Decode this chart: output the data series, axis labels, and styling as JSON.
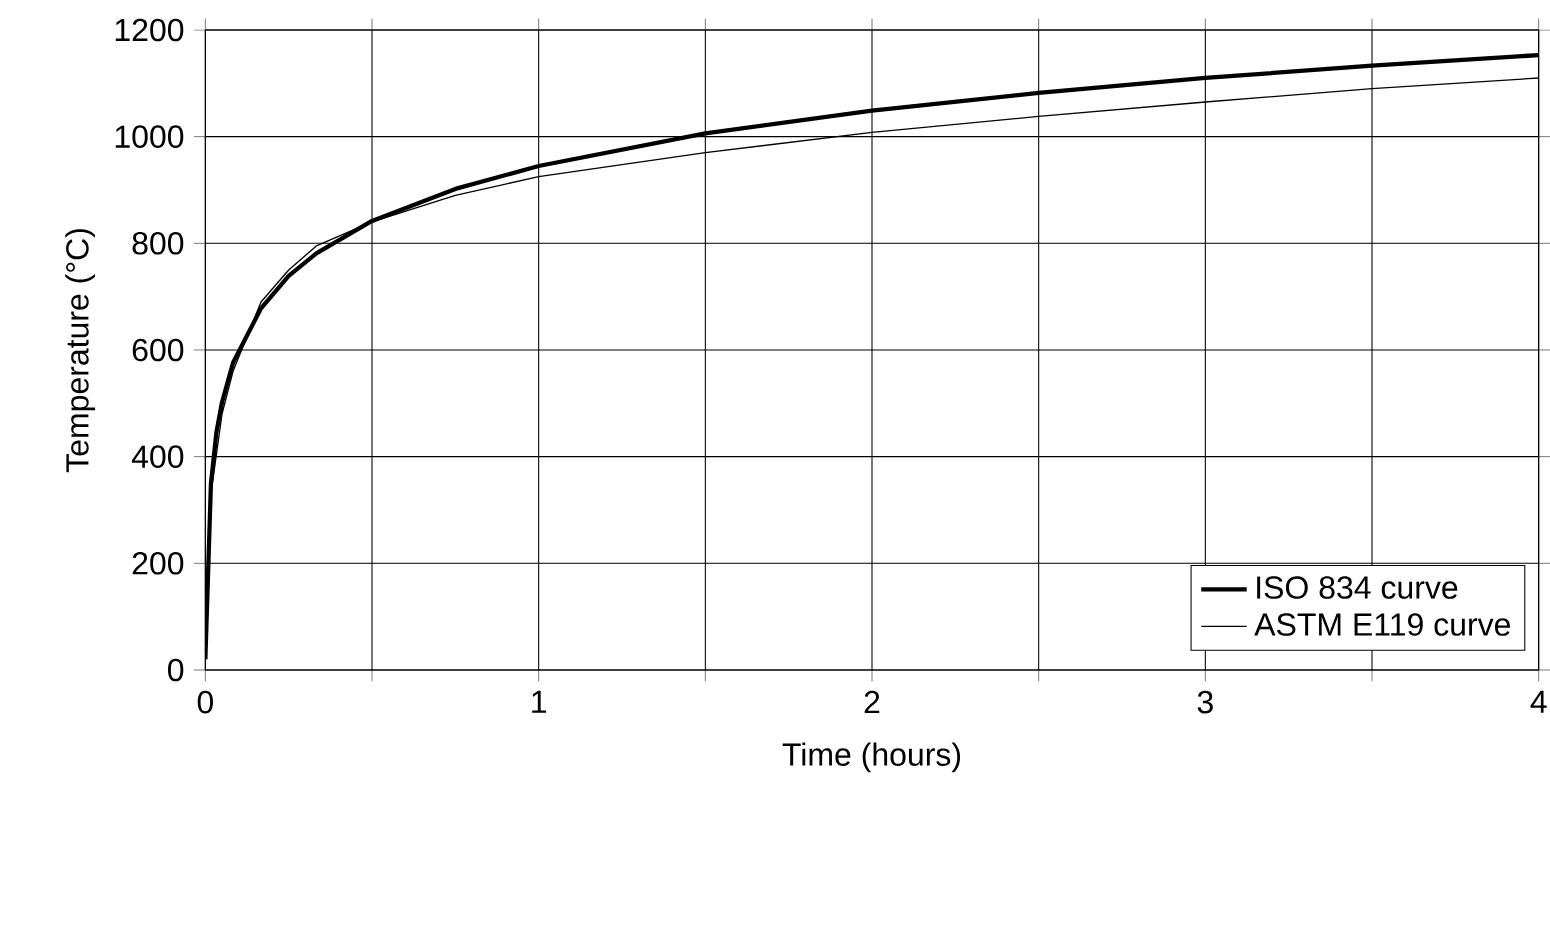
{
  "chart_data": {
    "type": "line",
    "xlabel": "Time (hours)",
    "ylabel": "Temperature (°C)",
    "xlim": [
      0,
      4
    ],
    "ylim": [
      0,
      1200
    ],
    "xticks": [
      0,
      {
        "value": 0.5,
        "label": null
      },
      1,
      {
        "value": 1.5,
        "label": null
      },
      2,
      {
        "value": 2.5,
        "label": null
      },
      3,
      {
        "value": 3.5,
        "label": null
      },
      4
    ],
    "yticks": [
      0,
      200,
      400,
      600,
      800,
      1000,
      1200
    ],
    "grid": true,
    "legend": "bottom right",
    "marker": "none",
    "line_style": "solid",
    "series": [
      {
        "name": "ISO 834 curve",
        "color": "#000000",
        "x": [
          0,
          0.0167,
          0.033,
          0.05,
          0.083,
          0.167,
          0.25,
          0.333,
          0.5,
          0.75,
          1,
          1.5,
          2,
          2.5,
          3,
          3.5,
          4
        ],
        "values": [
          20,
          349,
          445,
          502,
          576,
          678,
          739,
          781,
          842,
          902,
          945,
          1006,
          1049,
          1082,
          1110,
          1133,
          1153
        ]
      },
      {
        "name": "ASTM E119 curve",
        "color": "#000000",
        "x": [
          0,
          0.0167,
          0.05,
          0.083,
          0.167,
          0.25,
          0.333,
          0.5,
          0.75,
          1,
          1.5,
          2,
          2.5,
          3,
          3.5,
          4
        ],
        "values": [
          20,
          330,
          480,
          560,
          690,
          750,
          795,
          840,
          890,
          925,
          970,
          1008,
          1038,
          1065,
          1090,
          1110
        ]
      }
    ]
  }
}
